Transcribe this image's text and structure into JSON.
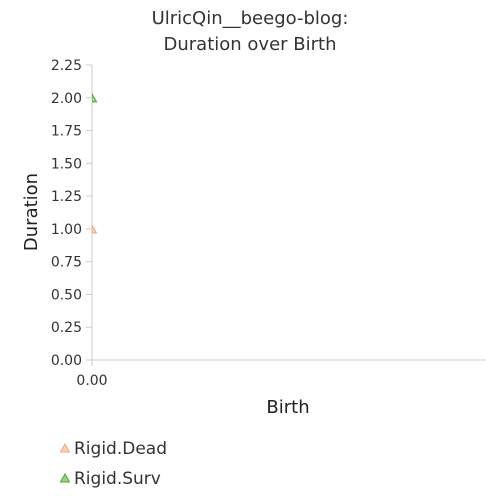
{
  "chart_data": {
    "type": "scatter",
    "title_lines": [
      "UlricQin__beego-blog:",
      "Duration over Birth"
    ],
    "xlabel": "Birth",
    "ylabel": "Duration",
    "xlim": [
      0,
      1
    ],
    "ylim": [
      0,
      2.25
    ],
    "x_tick_labels": [
      "0.00"
    ],
    "y_tick_labels": [
      "0.00",
      "0.25",
      "0.50",
      "0.75",
      "1.00",
      "1.25",
      "1.50",
      "1.75",
      "2.00",
      "2.25"
    ],
    "y_ticks": [
      0,
      0.25,
      0.5,
      0.75,
      1.0,
      1.25,
      1.5,
      1.75,
      2.0,
      2.25
    ],
    "x_ticks": [
      0
    ],
    "grid": false,
    "legend_position": "bottom-left",
    "series": [
      {
        "name": "Rigid.Dead",
        "marker": "triangle",
        "color": "#f4a582",
        "points": [
          {
            "x": 0,
            "y": 1.0
          }
        ]
      },
      {
        "name": "Rigid.Surv",
        "marker": "triangle",
        "color": "#4dac26",
        "points": [
          {
            "x": 0,
            "y": 2.0
          }
        ]
      }
    ]
  }
}
